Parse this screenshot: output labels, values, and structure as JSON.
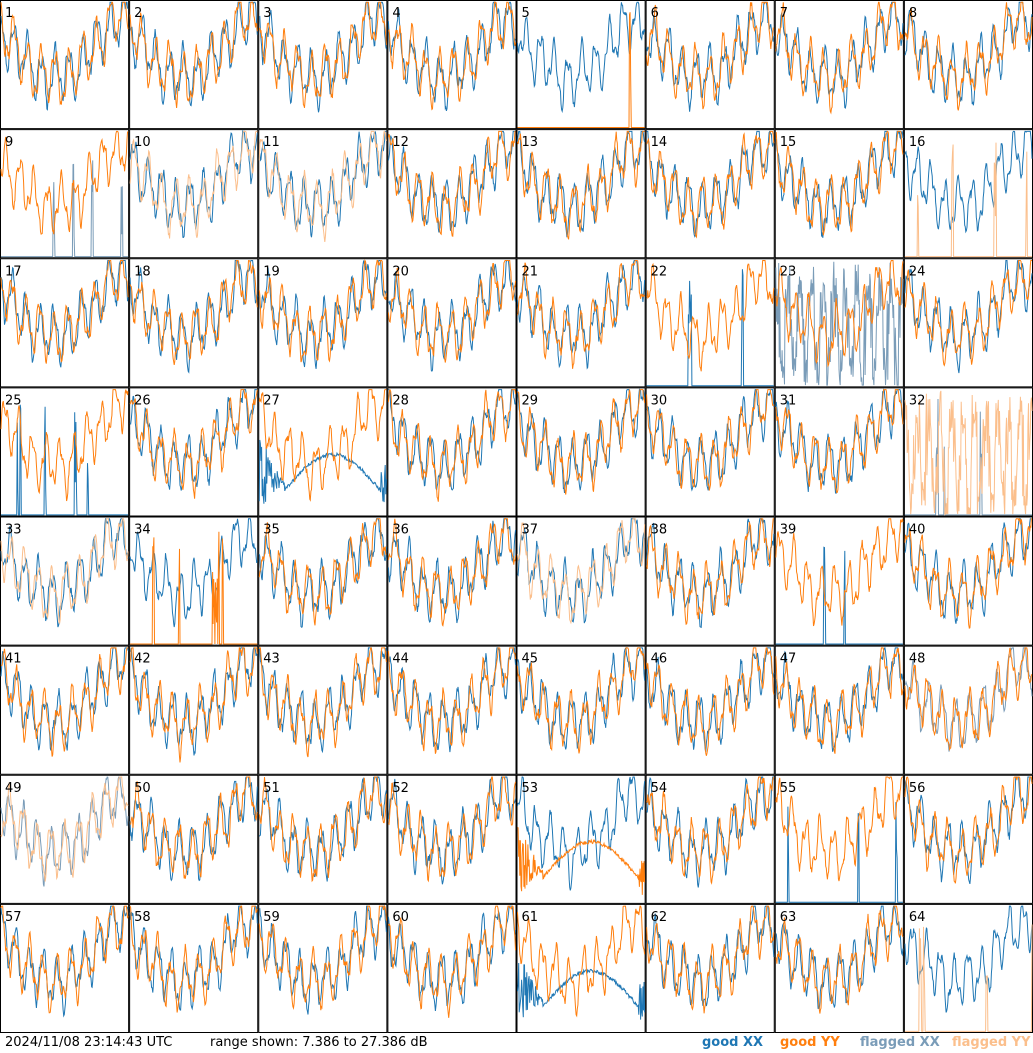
{
  "footer": {
    "timestamp": "2024/11/08 23:14:43 UTC",
    "range_text": "range shown: 7.386 to 27.386 dB"
  },
  "legend": {
    "good_xx": "good XX",
    "good_yy": "good YY",
    "flagged_xx": "flagged XX",
    "flagged_yy": "flagged YY"
  },
  "colors": {
    "good_xx": "#1f77b4",
    "good_yy": "#ff7f0e",
    "flagged_xx": "#7a9cb8",
    "flagged_yy": "#fbbf8c"
  },
  "chart_data": {
    "type": "line",
    "layout": "8x8 small multiples",
    "y_range_db": [
      7.386,
      27.386
    ],
    "panels": [
      {
        "label": "1",
        "xx": "good",
        "yy": "good",
        "xx_pattern": "normal",
        "yy_pattern": "normal"
      },
      {
        "label": "2",
        "xx": "good",
        "yy": "good",
        "xx_pattern": "normal",
        "yy_pattern": "normal"
      },
      {
        "label": "3",
        "xx": "good",
        "yy": "good",
        "xx_pattern": "normal",
        "yy_pattern": "normal"
      },
      {
        "label": "4",
        "xx": "good",
        "yy": "good",
        "xx_pattern": "normal",
        "yy_pattern": "normal"
      },
      {
        "label": "5",
        "xx": "good",
        "yy": "good",
        "xx_pattern": "normal",
        "yy_pattern": "dropout"
      },
      {
        "label": "6",
        "xx": "good",
        "yy": "good",
        "xx_pattern": "normal",
        "yy_pattern": "normal"
      },
      {
        "label": "7",
        "xx": "good",
        "yy": "good",
        "xx_pattern": "normal",
        "yy_pattern": "normal"
      },
      {
        "label": "8",
        "xx": "good",
        "yy": "good",
        "xx_pattern": "normal",
        "yy_pattern": "normal"
      },
      {
        "label": "9",
        "xx": "flagged",
        "yy": "good",
        "xx_pattern": "dropout",
        "yy_pattern": "normal"
      },
      {
        "label": "10",
        "xx": "good",
        "yy": "flagged",
        "xx_pattern": "normal",
        "yy_pattern": "normal"
      },
      {
        "label": "11",
        "xx": "good",
        "yy": "flagged",
        "xx_pattern": "normal",
        "yy_pattern": "normal"
      },
      {
        "label": "12",
        "xx": "good",
        "yy": "good",
        "xx_pattern": "normal",
        "yy_pattern": "normal"
      },
      {
        "label": "13",
        "xx": "good",
        "yy": "good",
        "xx_pattern": "normal",
        "yy_pattern": "normal"
      },
      {
        "label": "14",
        "xx": "good",
        "yy": "good",
        "xx_pattern": "normal",
        "yy_pattern": "normal"
      },
      {
        "label": "15",
        "xx": "good",
        "yy": "good",
        "xx_pattern": "normal",
        "yy_pattern": "normal"
      },
      {
        "label": "16",
        "xx": "good",
        "yy": "flagged",
        "xx_pattern": "normal",
        "yy_pattern": "dropout"
      },
      {
        "label": "17",
        "xx": "good",
        "yy": "good",
        "xx_pattern": "normal",
        "yy_pattern": "normal"
      },
      {
        "label": "18",
        "xx": "good",
        "yy": "good",
        "xx_pattern": "normal",
        "yy_pattern": "normal"
      },
      {
        "label": "19",
        "xx": "good",
        "yy": "good",
        "xx_pattern": "normal",
        "yy_pattern": "normal"
      },
      {
        "label": "20",
        "xx": "good",
        "yy": "good",
        "xx_pattern": "normal",
        "yy_pattern": "normal"
      },
      {
        "label": "21",
        "xx": "good",
        "yy": "good",
        "xx_pattern": "normal",
        "yy_pattern": "normal"
      },
      {
        "label": "22",
        "xx": "good",
        "yy": "good",
        "xx_pattern": "dropout",
        "yy_pattern": "normal"
      },
      {
        "label": "23",
        "xx": "flagged",
        "yy": "good",
        "xx_pattern": "noisy",
        "yy_pattern": "normal"
      },
      {
        "label": "24",
        "xx": "good",
        "yy": "good",
        "xx_pattern": "normal",
        "yy_pattern": "normal"
      },
      {
        "label": "25",
        "xx": "good",
        "yy": "good",
        "xx_pattern": "dropout",
        "yy_pattern": "normal"
      },
      {
        "label": "26",
        "xx": "good",
        "yy": "good",
        "xx_pattern": "normal",
        "yy_pattern": "normal"
      },
      {
        "label": "27",
        "xx": "good",
        "yy": "good",
        "xx_pattern": "curve",
        "yy_pattern": "normal"
      },
      {
        "label": "28",
        "xx": "good",
        "yy": "good",
        "xx_pattern": "normal",
        "yy_pattern": "normal"
      },
      {
        "label": "29",
        "xx": "good",
        "yy": "good",
        "xx_pattern": "normal",
        "yy_pattern": "normal"
      },
      {
        "label": "30",
        "xx": "good",
        "yy": "good",
        "xx_pattern": "normal",
        "yy_pattern": "normal"
      },
      {
        "label": "31",
        "xx": "good",
        "yy": "good",
        "xx_pattern": "normal",
        "yy_pattern": "normal"
      },
      {
        "label": "32",
        "xx": "flagged",
        "yy": "flagged",
        "xx_pattern": "dropout",
        "yy_pattern": "noisy"
      },
      {
        "label": "33",
        "xx": "good",
        "yy": "flagged",
        "xx_pattern": "normal",
        "yy_pattern": "normal"
      },
      {
        "label": "34",
        "xx": "good",
        "yy": "good",
        "xx_pattern": "normal",
        "yy_pattern": "dropout"
      },
      {
        "label": "35",
        "xx": "good",
        "yy": "good",
        "xx_pattern": "normal",
        "yy_pattern": "normal"
      },
      {
        "label": "36",
        "xx": "good",
        "yy": "good",
        "xx_pattern": "normal",
        "yy_pattern": "normal"
      },
      {
        "label": "37",
        "xx": "good",
        "yy": "flagged",
        "xx_pattern": "normal",
        "yy_pattern": "normal"
      },
      {
        "label": "38",
        "xx": "good",
        "yy": "good",
        "xx_pattern": "normal",
        "yy_pattern": "normal"
      },
      {
        "label": "39",
        "xx": "good",
        "yy": "good",
        "xx_pattern": "dropout",
        "yy_pattern": "normal"
      },
      {
        "label": "40",
        "xx": "good",
        "yy": "good",
        "xx_pattern": "normal",
        "yy_pattern": "normal"
      },
      {
        "label": "41",
        "xx": "good",
        "yy": "good",
        "xx_pattern": "normal",
        "yy_pattern": "normal"
      },
      {
        "label": "42",
        "xx": "good",
        "yy": "good",
        "xx_pattern": "normal",
        "yy_pattern": "normal"
      },
      {
        "label": "43",
        "xx": "good",
        "yy": "good",
        "xx_pattern": "normal",
        "yy_pattern": "normal"
      },
      {
        "label": "44",
        "xx": "good",
        "yy": "good",
        "xx_pattern": "normal",
        "yy_pattern": "normal"
      },
      {
        "label": "45",
        "xx": "good",
        "yy": "good",
        "xx_pattern": "normal",
        "yy_pattern": "normal"
      },
      {
        "label": "46",
        "xx": "good",
        "yy": "good",
        "xx_pattern": "normal",
        "yy_pattern": "normal"
      },
      {
        "label": "47",
        "xx": "good",
        "yy": "good",
        "xx_pattern": "normal",
        "yy_pattern": "normal"
      },
      {
        "label": "48",
        "xx": "flagged",
        "yy": "good",
        "xx_pattern": "normal",
        "yy_pattern": "normal"
      },
      {
        "label": "49",
        "xx": "flagged",
        "yy": "flagged",
        "xx_pattern": "normal",
        "yy_pattern": "normal"
      },
      {
        "label": "50",
        "xx": "good",
        "yy": "good",
        "xx_pattern": "normal",
        "yy_pattern": "normal"
      },
      {
        "label": "51",
        "xx": "good",
        "yy": "good",
        "xx_pattern": "normal",
        "yy_pattern": "normal"
      },
      {
        "label": "52",
        "xx": "good",
        "yy": "good",
        "xx_pattern": "normal",
        "yy_pattern": "normal"
      },
      {
        "label": "53",
        "xx": "good",
        "yy": "good",
        "xx_pattern": "normal",
        "yy_pattern": "curve"
      },
      {
        "label": "54",
        "xx": "good",
        "yy": "good",
        "xx_pattern": "normal",
        "yy_pattern": "normal"
      },
      {
        "label": "55",
        "xx": "good",
        "yy": "good",
        "xx_pattern": "dropout",
        "yy_pattern": "normal"
      },
      {
        "label": "56",
        "xx": "good",
        "yy": "good",
        "xx_pattern": "normal",
        "yy_pattern": "normal"
      },
      {
        "label": "57",
        "xx": "good",
        "yy": "good",
        "xx_pattern": "normal",
        "yy_pattern": "normal"
      },
      {
        "label": "58",
        "xx": "good",
        "yy": "good",
        "xx_pattern": "normal",
        "yy_pattern": "normal"
      },
      {
        "label": "59",
        "xx": "good",
        "yy": "good",
        "xx_pattern": "normal",
        "yy_pattern": "normal"
      },
      {
        "label": "60",
        "xx": "good",
        "yy": "good",
        "xx_pattern": "normal",
        "yy_pattern": "normal"
      },
      {
        "label": "61",
        "xx": "good",
        "yy": "good",
        "xx_pattern": "curve",
        "yy_pattern": "normal"
      },
      {
        "label": "62",
        "xx": "good",
        "yy": "good",
        "xx_pattern": "normal",
        "yy_pattern": "normal"
      },
      {
        "label": "63",
        "xx": "good",
        "yy": "good",
        "xx_pattern": "normal",
        "yy_pattern": "normal"
      },
      {
        "label": "64",
        "xx": "good",
        "yy": "flagged",
        "xx_pattern": "normal",
        "yy_pattern": "dropout"
      }
    ]
  }
}
